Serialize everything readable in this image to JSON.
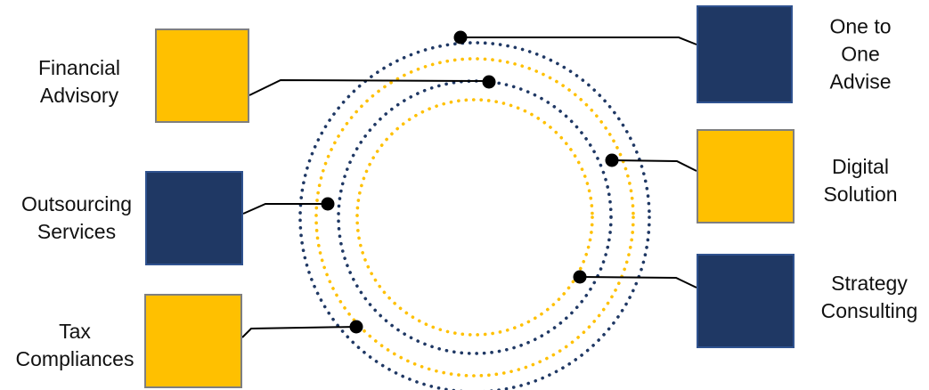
{
  "colors": {
    "navy": "#1f3864",
    "gold": "#ffc000",
    "connector": "#000000",
    "box_border": "#7f7f7f",
    "navy_box_border": "#2f528f"
  },
  "services": [
    {
      "id": "financial-advisory",
      "lines": [
        "Financial",
        "Advisory"
      ],
      "color": "gold",
      "side": "left"
    },
    {
      "id": "outsourcing-services",
      "lines": [
        "Outsourcing",
        "Services"
      ],
      "color": "navy",
      "side": "left"
    },
    {
      "id": "tax-compliances",
      "lines": [
        "Tax",
        "Compliances"
      ],
      "color": "gold",
      "side": "left"
    },
    {
      "id": "one-to-one-advise",
      "lines": [
        "One to",
        "One",
        "Advise"
      ],
      "color": "navy",
      "side": "right"
    },
    {
      "id": "digital-solution",
      "lines": [
        "Digital",
        "Solution"
      ],
      "color": "gold",
      "side": "right"
    },
    {
      "id": "strategy-consulting",
      "lines": [
        "Strategy",
        "Consulting"
      ],
      "color": "navy",
      "side": "right"
    }
  ],
  "rings": [
    {
      "color": "navy",
      "style": "dotted"
    },
    {
      "color": "gold",
      "style": "dotted"
    },
    {
      "color": "navy",
      "style": "dotted"
    },
    {
      "color": "gold",
      "style": "dotted"
    }
  ]
}
